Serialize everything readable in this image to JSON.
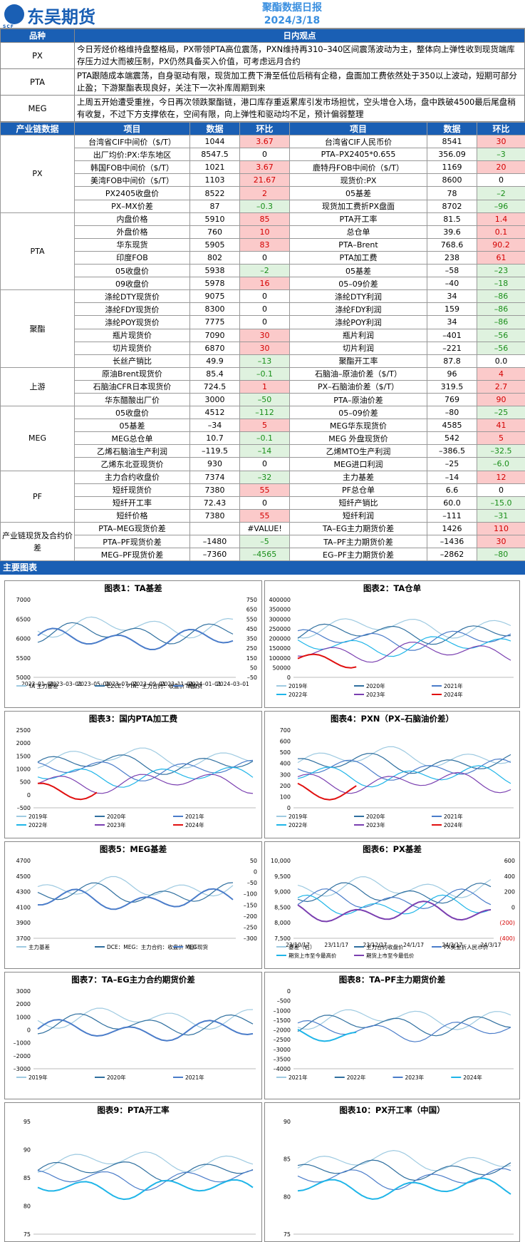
{
  "header": {
    "brand": "东吴期货",
    "logo_sub": "SCF",
    "report_title": "聚酯数据日报",
    "report_date": "2024/3/18"
  },
  "view": {
    "col_category": "品种",
    "col_view": "日内观点",
    "rows": [
      {
        "cat": "PX",
        "text": "今日芳烃价格维持盘整格局，PX带领PTA高位震荡，PXN维持再310–340区间震荡波动为主，整体向上弹性收到现货端库存压力过大而被压制，PX仍然具备买入价值，可考虑远月合约"
      },
      {
        "cat": "PTA",
        "text": "PTA跟随成本端震荡，自身驱动有限，现货加工费下滑至低位后稍有企稳，盘面加工费依然处于350以上波动，短期可部分止盈；下游聚酯表现良好，关注下一次补库周期到来"
      },
      {
        "cat": "MEG",
        "text": "上周五开始遭受重挫，今日再次领跌聚酯链，港口库存重返累库引发市场担忧，空头增仓入场，盘中跌破4500最后尾盘稍有收复，不过下方支撑依在，空间有限，向上弹性和驱动均不足，预计偏弱整理"
      }
    ]
  },
  "data_table": {
    "headers": [
      "产业链数据",
      "项目",
      "数据",
      "环比",
      "项目",
      "数据",
      "环比"
    ],
    "sections": [
      {
        "name": "PX",
        "rows": [
          [
            "台湾省CIF中间价（$/T）",
            "1044",
            "3.67",
            "台湾省CIF人民币价",
            "8541",
            "30"
          ],
          [
            "出厂均价:PX:华东地区",
            "8547.5",
            "0",
            "PTA–PX2405*0.655",
            "356.09",
            "–3"
          ],
          [
            "韩国FOB中间价（$/T）",
            "1021",
            "3.67",
            "鹿特丹FOB中间价（$/T）",
            "1169",
            "20"
          ],
          [
            "美湾FOB中间价（$/T）",
            "1103",
            "21.67",
            "现货价:PX",
            "8600",
            "0"
          ],
          [
            "PX2405收盘价",
            "8522",
            "2",
            "05基差",
            "78",
            "–2"
          ],
          [
            "PX–MX价差",
            "87",
            "–0.3",
            "现货加工费折PX盘面",
            "8702",
            "–96"
          ]
        ]
      },
      {
        "name": "PTA",
        "rows": [
          [
            "内盘价格",
            "5910",
            "85",
            "PTA开工率",
            "81.5",
            "1.4"
          ],
          [
            "外盘价格",
            "760",
            "10",
            "总仓单",
            "39.6",
            "0.1"
          ],
          [
            "华东现货",
            "5905",
            "83",
            "PTA–Brent",
            "768.6",
            "90.2"
          ],
          [
            "印度FOB",
            "802",
            "0",
            "PTA加工费",
            "238",
            "61"
          ],
          [
            "05收盘价",
            "5938",
            "–2",
            "05基差",
            "–58",
            "–23"
          ],
          [
            "09收盘价",
            "5978",
            "16",
            "05–09价差",
            "–40",
            "–18"
          ]
        ]
      },
      {
        "name": "聚酯",
        "rows": [
          [
            "涤纶DTY现货价",
            "9075",
            "0",
            "涤纶DTY利润",
            "34",
            "–86"
          ],
          [
            "涤纶FDY现货价",
            "8300",
            "0",
            "涤纶FDY利润",
            "159",
            "–86"
          ],
          [
            "涤纶POY现货价",
            "7775",
            "0",
            "涤纶POY利润",
            "34",
            "–86"
          ],
          [
            "瓶片现货价",
            "7090",
            "30",
            "瓶片利润",
            "–401",
            "–56"
          ],
          [
            "切片现货价",
            "6870",
            "30",
            "切片利润",
            "–221",
            "–56"
          ],
          [
            "长丝产销比",
            "49.9",
            "–13",
            "聚酯开工率",
            "87.8",
            "0.0"
          ]
        ]
      },
      {
        "name": "上游",
        "rows": [
          [
            "原油Brent现货价",
            "85.4",
            "–0.1",
            "石脑油–原油价差（$/T）",
            "96",
            "4"
          ],
          [
            "石脑油CFR日本现货价",
            "724.5",
            "1",
            "PX–石脑油价差（$/T）",
            "319.5",
            "2.7"
          ],
          [
            "华东醋酸出厂价",
            "3000",
            "–50",
            "PTA–原油价差",
            "769",
            "90"
          ]
        ]
      },
      {
        "name": "MEG",
        "rows": [
          [
            "05收盘价",
            "4512",
            "–112",
            "05–09价差",
            "–80",
            "–25"
          ],
          [
            "05基差",
            "–34",
            "5",
            "MEG华东现货价",
            "4585",
            "41"
          ],
          [
            "MEG总仓单",
            "10.7",
            "–0.1",
            "MEG 外盘现货价",
            "542",
            "5"
          ],
          [
            "乙烯石脑油生产利润",
            "–119.5",
            "–14",
            "乙烯MTO生产利润",
            "–386.5",
            "–32.5"
          ],
          [
            "乙烯东北亚现货价",
            "930",
            "0",
            "MEG进口利润",
            "–25",
            "–6.0"
          ]
        ]
      },
      {
        "name": "PF",
        "rows": [
          [
            "主力合约收盘价",
            "7374",
            "–32",
            "主力基差",
            "–14",
            "12"
          ],
          [
            "短纤现货价",
            "7380",
            "55",
            "PF总仓单",
            "6.6",
            "0"
          ],
          [
            "短纤开工率",
            "72.43",
            "0",
            "短纤产销比",
            "60.0",
            "–15.0"
          ],
          [
            "短纤价格",
            "7380",
            "55",
            "短纤利润",
            "–111",
            "–31"
          ]
        ]
      },
      {
        "name": "产业链现货及合约价差",
        "rows": [
          [
            "PTA–MEG现货价差",
            "",
            "#VALUE!",
            "TA–EG主力期货价差",
            "1426",
            "110"
          ],
          [
            "PTA–PF现货价差",
            "–1480",
            "–5",
            "TA–PF主力期货价差",
            "–1436",
            "30"
          ],
          [
            "MEG–PF现货价差",
            "–7360",
            "–4565",
            "EG–PF主力期货价差",
            "–2862",
            "–80"
          ]
        ]
      }
    ]
  },
  "charts_section": {
    "title": "主要图表",
    "panels": [
      {
        "title": "图表1：TA基差",
        "legend": [
          "TA 主力基差",
          "CZCE：PTA：主力合约：收盘价（日）",
          "TA现货"
        ],
        "x_ticks": [
          "2023–01–01",
          "2023–03–01",
          "2023–05–01",
          "2023–07–01",
          "2023–09–01",
          "2023–11–01",
          "2024–01–01",
          "2024–03–01"
        ],
        "y_left": [
          "7000",
          "6500",
          "6000",
          "5500",
          "5000"
        ],
        "y_right": [
          "750",
          "650",
          "550",
          "450",
          "350",
          "250",
          "150",
          "50",
          "–50"
        ]
      },
      {
        "title": "图表2：TA仓单",
        "legend": [
          "2019年",
          "2020年",
          "2021年",
          "2022年",
          "2023年",
          "2024年"
        ],
        "y_left": [
          "400000",
          "350000",
          "300000",
          "250000",
          "200000",
          "150000",
          "100000",
          "50000",
          "0"
        ]
      },
      {
        "title": "图表3：国内PTA加工费",
        "legend": [
          "2019年",
          "2020年",
          "2021年",
          "2022年",
          "2023年",
          "2024年"
        ],
        "y_left": [
          "2500",
          "2000",
          "1500",
          "1000",
          "500",
          "0",
          "–500"
        ]
      },
      {
        "title": "图表4：PXN（PX–石脑油价差）",
        "legend": [
          "2019年",
          "2020年",
          "2021年",
          "2022年",
          "2023年",
          "2024年"
        ],
        "y_left": [
          "700",
          "600",
          "500",
          "400",
          "300",
          "200",
          "100",
          "0"
        ]
      },
      {
        "title": "图表5：MEG基差",
        "legend": [
          "主力基差",
          "DCE：MEG：主力合约：收盘价（日）",
          "MEG现货"
        ],
        "y_left": [
          "4700",
          "4500",
          "4300",
          "4100",
          "3900",
          "3700"
        ],
        "y_right": [
          "50",
          "0",
          "–50",
          "–100",
          "–150",
          "–200",
          "–250",
          "–300"
        ]
      },
      {
        "title": "图表6：PX基差",
        "legend": [
          "基差（右）",
          "主力合约收盘价",
          "PX美金折人民币价",
          "期货上市至今最高价",
          "期货上市至今最低价"
        ],
        "x_ticks": [
          "23/10/17",
          "23/11/17",
          "23/12/17",
          "24/1/17",
          "24/2/17",
          "24/3/17"
        ],
        "y_left": [
          "10,000",
          "9,500",
          "9,000",
          "8,500",
          "8,000",
          "7,500"
        ],
        "y_right": [
          "600",
          "400",
          "200",
          "0",
          "(200)",
          "(400)"
        ]
      },
      {
        "title": "图表7：TA–EG主力合约期货价差",
        "legend": [
          "2019年",
          "2020年",
          "2021年"
        ],
        "y_left": [
          "3000",
          "2000",
          "1000",
          "0",
          "–1000",
          "–2000",
          "–3000"
        ]
      },
      {
        "title": "图表8：TA–PF主力期货价差",
        "legend": [
          "2021年",
          "2022年",
          "2023年",
          "2024年"
        ],
        "y_left": [
          "0",
          "–500",
          "–1000",
          "–1500",
          "–2000",
          "–2500",
          "–3000",
          "–3500",
          "–4000"
        ]
      },
      {
        "title": "图表9：PTA开工率",
        "y_left": [
          "95",
          "90",
          "85",
          "80",
          "75"
        ]
      },
      {
        "title": "图表10：PX开工率（中国）",
        "y_left": [
          "90",
          "85",
          "80",
          "75"
        ]
      }
    ]
  },
  "colors": {
    "brand": "#1a5fb4",
    "pos_bg": "#fbcaca",
    "pos_text": "#d40000",
    "neg_bg": "#dff2df",
    "neg_text": "#1a8f1a"
  }
}
